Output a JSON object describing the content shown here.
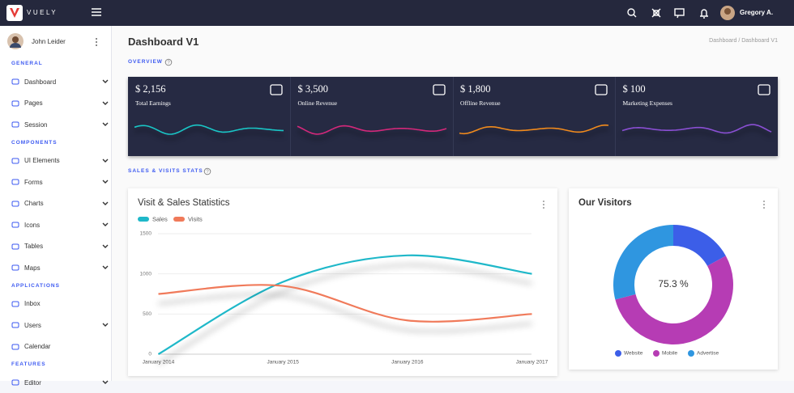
{
  "header": {
    "logo": "VUELY",
    "user": "Gregory A."
  },
  "sidebar": {
    "user": "John Leider",
    "sections": [
      {
        "title": "GENERAL",
        "items": [
          {
            "label": "Dashboard",
            "expandable": true
          },
          {
            "label": "Pages",
            "expandable": true
          },
          {
            "label": "Session",
            "expandable": true
          }
        ]
      },
      {
        "title": "COMPONENTS",
        "items": [
          {
            "label": "UI Elements",
            "expandable": true
          },
          {
            "label": "Forms",
            "expandable": true
          },
          {
            "label": "Charts",
            "expandable": true
          },
          {
            "label": "Icons",
            "expandable": true
          },
          {
            "label": "Tables",
            "expandable": true
          },
          {
            "label": "Maps",
            "expandable": true
          }
        ]
      },
      {
        "title": "APPLICATIONS",
        "items": [
          {
            "label": "Inbox",
            "expandable": false
          },
          {
            "label": "Users",
            "expandable": true
          },
          {
            "label": "Calendar",
            "expandable": false
          }
        ]
      },
      {
        "title": "FEATURES",
        "items": [
          {
            "label": "Editor",
            "expandable": true
          }
        ]
      }
    ]
  },
  "page": {
    "title": "Dashboard V1",
    "breadcrumb": "Dashboard / Dashboard V1",
    "overview": "OVERVIEW",
    "stats_heading": "SALES & VISITS STATS"
  },
  "stats": [
    {
      "value": "$ 2,156",
      "label": "Total Earnings"
    },
    {
      "value": "$ 3,500",
      "label": "Online Revenue"
    },
    {
      "value": "$ 1,800",
      "label": "Offline Revenue"
    },
    {
      "value": "$ 100",
      "label": "Marketing Expenses"
    }
  ],
  "chart_data": [
    {
      "type": "line",
      "title": "Visit & Sales Statistics",
      "categories": [
        "January 2014",
        "January 2015",
        "January 2016",
        "January 2017"
      ],
      "series": [
        {
          "name": "Sales",
          "color": "#1fb8c9",
          "values": [
            0,
            900,
            1230,
            1000
          ]
        },
        {
          "name": "Visits",
          "color": "#f07a5a",
          "values": [
            750,
            850,
            420,
            500
          ]
        }
      ],
      "ylim": [
        0,
        1500
      ],
      "yticks": [
        0,
        500,
        1000,
        1500
      ],
      "grid": true
    },
    {
      "type": "pie",
      "title": "Our Visitors",
      "center_label": "75.3 %",
      "categories": [
        "Website",
        "Mobile",
        "Advertise"
      ],
      "values": [
        17,
        54,
        29
      ],
      "colors": [
        "#3c5ee8",
        "#b63cb4",
        "#2f96e0"
      ]
    }
  ]
}
